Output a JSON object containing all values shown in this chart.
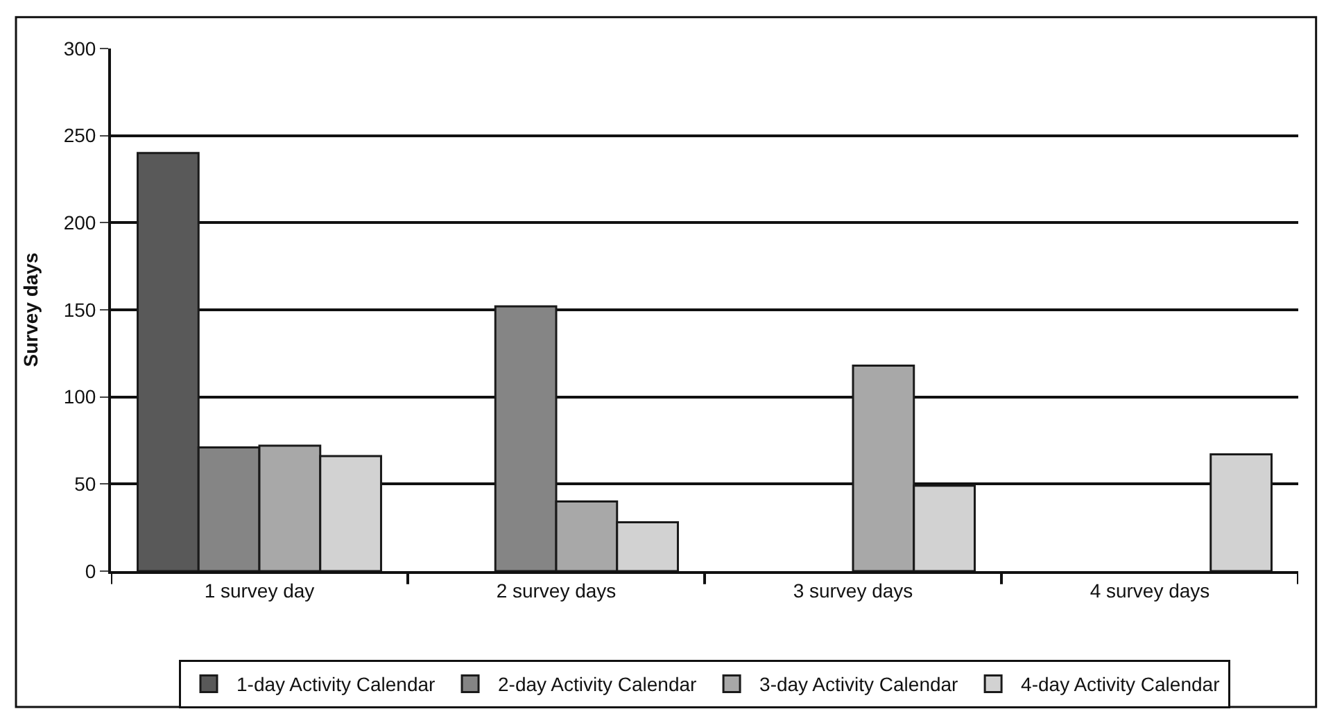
{
  "chart_data": {
    "type": "bar",
    "ylabel": "Survey days",
    "categories": [
      "1 survey day",
      "2 survey days",
      "3 survey days",
      "4 survey days"
    ],
    "series": [
      {
        "name": "1-day Activity Calendar",
        "color": "#595959",
        "values": [
          240,
          null,
          null,
          null
        ]
      },
      {
        "name": "2-day Activity Calendar",
        "color": "#858585",
        "values": [
          71,
          152,
          null,
          null
        ]
      },
      {
        "name": "3-day Activity Calendar",
        "color": "#a8a8a8",
        "values": [
          72,
          40,
          118,
          null
        ]
      },
      {
        "name": "4-day Activity Calendar",
        "color": "#d2d2d2",
        "values": [
          66,
          28,
          49,
          67
        ]
      }
    ],
    "ylim": [
      0,
      300
    ],
    "yticks": [
      0,
      50,
      100,
      150,
      200,
      250,
      300
    ],
    "grid": "y",
    "legend": "bottom"
  }
}
